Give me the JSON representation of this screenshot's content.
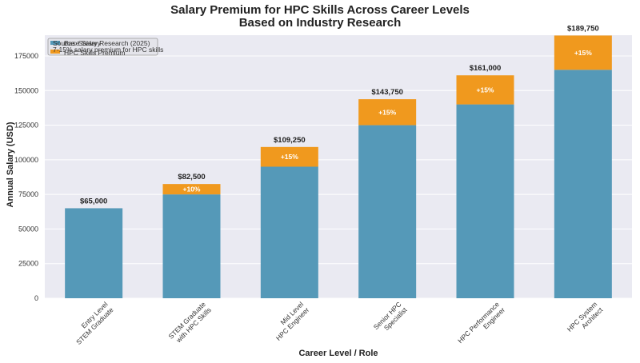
{
  "title_line1": "Salary Premium for HPC Skills Across Career Levels",
  "title_line2": "Based on Industry Research",
  "colors": {
    "plot_bg": "#eaeaf2",
    "base": "#5599b8",
    "premium": "#f0991e",
    "grid": "#ffffff"
  },
  "legend": {
    "base_label": "Base Salary",
    "premium_label": "HPC Skills Premium"
  },
  "annotation": {
    "line1": "Source: Salary Research (2025)",
    "line2": "7-15% salary premium for HPC skills"
  },
  "chart_data": {
    "type": "bar",
    "stacked": true,
    "title": "Salary Premium for HPC Skills Across Career Levels\nBased on Industry Research",
    "xlabel": "Career Level / Role",
    "ylabel": "Annual Salary (USD)",
    "ylim": [
      0,
      190000
    ],
    "yticks": [
      0,
      25000,
      50000,
      75000,
      100000,
      125000,
      150000,
      175000
    ],
    "grid": true,
    "legend_position": "top-left",
    "categories": [
      [
        "Entry Level",
        "STEM Graduate"
      ],
      [
        "STEM Graduate",
        "with HPC Skills"
      ],
      [
        "Mid Level",
        "HPC Engineer"
      ],
      [
        "Senior HPC",
        "Specialist"
      ],
      [
        "HPC Performance",
        "Engineer"
      ],
      [
        "HPC System",
        "Architect"
      ]
    ],
    "series": [
      {
        "name": "Base Salary",
        "values": [
          65000,
          75000,
          95000,
          125000,
          140000,
          165000
        ]
      },
      {
        "name": "HPC Skills Premium",
        "values": [
          0,
          7500,
          14250,
          18750,
          21000,
          24750
        ]
      }
    ],
    "total_labels": [
      "$65,000",
      "$82,500",
      "$109,250",
      "$143,750",
      "$161,000",
      "$189,750"
    ],
    "premium_labels": [
      "",
      "+10%",
      "+15%",
      "+15%",
      "+15%",
      "+15%"
    ]
  }
}
